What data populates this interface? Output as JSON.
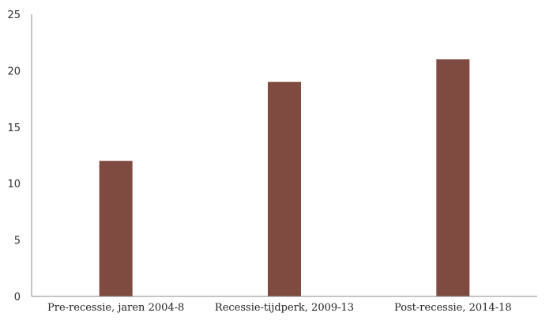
{
  "chart_data": {
    "type": "bar",
    "categories": [
      "Pre-recessie, jaren 2004-8",
      "Recessie-tijdperk, 2009-13",
      "Post-recessie, 2014-18"
    ],
    "values": [
      12,
      19,
      21
    ],
    "title": "",
    "xlabel": "",
    "ylabel": "",
    "ylim": [
      0,
      25
    ],
    "yticks": [
      "0",
      "5",
      "10",
      "15",
      "20",
      "25"
    ],
    "grid": false,
    "legend": "none",
    "bar_color": "#7f4a40",
    "axis_color": "#888888"
  }
}
